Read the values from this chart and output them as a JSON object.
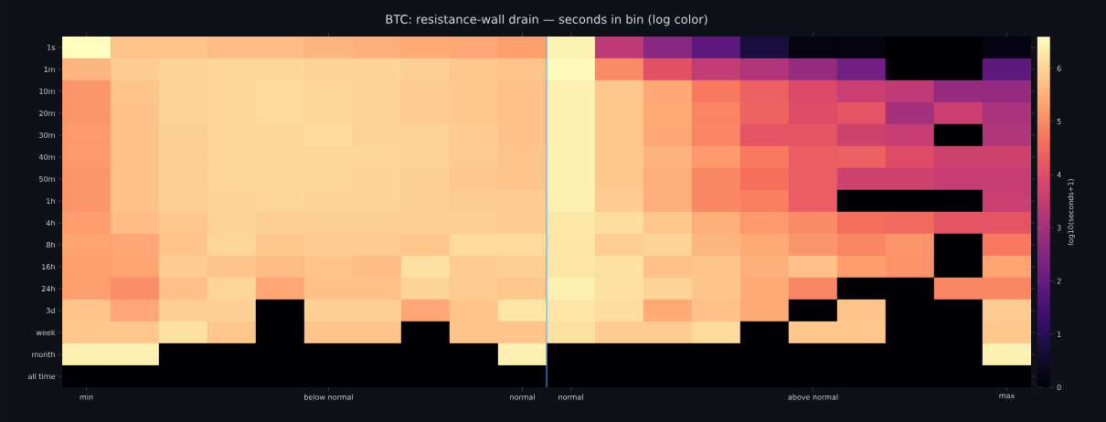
{
  "chart_data": {
    "type": "heatmap",
    "title": "BTC: resistance-wall drain — seconds in bin (log color)",
    "clabel": "log10(seconds+1)",
    "categories": [
      "min",
      null,
      null,
      null,
      null,
      "below normal",
      null,
      null,
      null,
      "normal",
      "normal",
      null,
      null,
      null,
      null,
      "above normal",
      null,
      null,
      null,
      "max"
    ],
    "y_categories": [
      "1s",
      "1m",
      "10m",
      "20m",
      "30m",
      "40m",
      "50m",
      "1h",
      "4h",
      "8h",
      "16h",
      "24h",
      "3d",
      "week",
      "month",
      "all time"
    ],
    "cells": [
      [
        6.6,
        5.8,
        5.8,
        5.7,
        5.7,
        5.6,
        5.5,
        5.45,
        5.4,
        5.3,
        6.45,
        3.4,
        2.6,
        1.9,
        0.75,
        0.15,
        0.15,
        0,
        0,
        0.2
      ],
      [
        5.6,
        5.9,
        6.0,
        6.05,
        6.05,
        6.0,
        6.0,
        5.95,
        5.85,
        5.8,
        6.55,
        5.0,
        4.1,
        3.5,
        3.2,
        2.8,
        2.2,
        0,
        0,
        1.9
      ],
      [
        5.15,
        5.8,
        6.0,
        6.05,
        6.1,
        6.05,
        6.0,
        5.9,
        5.85,
        5.75,
        6.4,
        5.85,
        5.4,
        4.75,
        4.35,
        3.95,
        3.6,
        3.45,
        2.8,
        2.8
      ],
      [
        5.15,
        5.75,
        6.0,
        6.05,
        6.1,
        6.05,
        6.0,
        5.9,
        5.85,
        5.75,
        6.4,
        5.85,
        5.45,
        4.9,
        4.4,
        4.0,
        4.15,
        3.0,
        3.6,
        3.1
      ],
      [
        5.2,
        5.75,
        5.95,
        6.05,
        6.05,
        6.1,
        6.0,
        6.0,
        5.9,
        5.75,
        6.4,
        5.85,
        5.4,
        4.9,
        4.15,
        4.15,
        3.7,
        3.55,
        0,
        3.2
      ],
      [
        5.2,
        5.75,
        5.95,
        6.05,
        6.05,
        6.05,
        6.05,
        6.0,
        5.9,
        5.8,
        6.4,
        5.85,
        5.55,
        5.2,
        4.75,
        4.3,
        4.35,
        4.0,
        3.7,
        3.7
      ],
      [
        5.15,
        5.75,
        5.95,
        6.05,
        6.05,
        6.05,
        6.0,
        5.95,
        5.85,
        5.8,
        6.4,
        5.85,
        5.5,
        4.95,
        4.6,
        4.3,
        3.7,
        3.7,
        3.55,
        3.55
      ],
      [
        5.15,
        5.75,
        5.95,
        6.0,
        6.05,
        6.0,
        6.0,
        5.95,
        5.9,
        5.9,
        6.4,
        5.9,
        5.5,
        4.95,
        4.8,
        4.3,
        0,
        0,
        0,
        3.6
      ],
      [
        5.25,
        5.7,
        5.85,
        6.0,
        5.95,
        5.95,
        5.95,
        5.95,
        5.95,
        5.9,
        6.3,
        6.15,
        5.85,
        5.5,
        5.2,
        5.0,
        4.6,
        4.5,
        4.15,
        4.15
      ],
      [
        5.35,
        5.4,
        5.8,
        6.05,
        5.85,
        5.9,
        5.9,
        5.85,
        6.1,
        6.1,
        6.25,
        5.95,
        6.0,
        5.6,
        5.45,
        5.15,
        4.95,
        5.15,
        0,
        4.75
      ],
      [
        5.3,
        5.35,
        5.9,
        5.8,
        5.7,
        5.8,
        5.7,
        6.2,
        5.9,
        5.95,
        6.25,
        6.2,
        5.75,
        5.8,
        5.5,
        5.75,
        5.25,
        5.1,
        0,
        5.35
      ],
      [
        5.3,
        5.05,
        5.75,
        6.05,
        5.4,
        5.75,
        5.75,
        6.0,
        5.9,
        5.85,
        6.4,
        6.2,
        6.0,
        5.8,
        5.45,
        4.95,
        0,
        0,
        4.95,
        4.95
      ],
      [
        5.8,
        5.4,
        5.95,
        5.95,
        0,
        5.95,
        5.95,
        5.4,
        5.8,
        6.25,
        6.25,
        6.15,
        5.45,
        5.75,
        5.45,
        0,
        5.8,
        0,
        0,
        5.9
      ],
      [
        5.85,
        5.85,
        6.2,
        5.85,
        0,
        5.8,
        5.8,
        0,
        5.8,
        5.8,
        6.2,
        5.9,
        5.9,
        6.1,
        0,
        5.85,
        5.85,
        0,
        0,
        5.85
      ],
      [
        6.4,
        6.4,
        0,
        0,
        0,
        0,
        0,
        0,
        0,
        6.4,
        0,
        0,
        0,
        0,
        0,
        0,
        0,
        0,
        0,
        6.4
      ],
      [
        0,
        0,
        0,
        0,
        0,
        0,
        0,
        0,
        0,
        0,
        0,
        0,
        0,
        0,
        0,
        0,
        0,
        0,
        0,
        0
      ]
    ],
    "clim": [
      0,
      6.6
    ],
    "cticks": [
      0,
      1,
      2,
      3,
      4,
      5,
      6
    ]
  }
}
